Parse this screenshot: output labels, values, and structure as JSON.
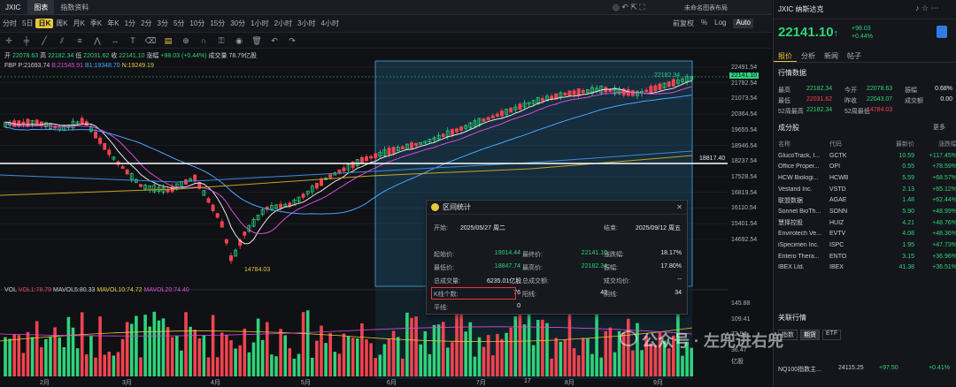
{
  "window": {
    "symbol": "JXIC",
    "tabs": [
      "图表",
      "指数资料"
    ],
    "active_tab": 0,
    "right_controls": "未命名图表布局"
  },
  "periods": [
    "分时",
    "5日",
    "日K",
    "周K",
    "月K",
    "季K",
    "年K",
    "1分",
    "2分",
    "3分",
    "5分",
    "10分",
    "15分",
    "30分",
    "1小时",
    "2小时",
    "3小时",
    "4小时"
  ],
  "active_period": 2,
  "toolbar_right": [
    "前复权",
    "%",
    "Log",
    "Auto"
  ],
  "ohlc": {
    "open_label": "开",
    "open": "22078.63",
    "high_label": "高",
    "high": "22182.34",
    "low_label": "低",
    "low": "22031.62",
    "close_label": "收",
    "close": "22141.10",
    "change_label": "涨幅",
    "change": "+98.03 (+0.44%)",
    "vol_label": "成交量",
    "vol": "78.79亿股"
  },
  "ma_legend": {
    "fbp": "FBP",
    "p": "P:21693.74",
    "b": "B:21545.91",
    "b1": "B1:19348.70",
    "n": "N:19249.19"
  },
  "vol_legend": {
    "vol": "VOL",
    "vol1": "VOL1:78.79",
    "mavol5": "MAVOL5:80.33",
    "mavol10": "MAVOL10:74.72",
    "mavol20": "MAVOL20:74.40"
  },
  "annotations": {
    "high_tag": "22182.34",
    "low_tag": "14784.03",
    "hline_tag": "18817.40",
    "last_price": "22141.10",
    "vol_unit": "亿股"
  },
  "y_ticks": [
    "22491.54",
    "21782.54",
    "21073.54",
    "20364.54",
    "19655.54",
    "18946.54",
    "18237.54",
    "17528.54",
    "16819.54",
    "16110.54",
    "15401.54",
    "14692.54"
  ],
  "vol_ticks": [
    "145.88",
    "109.41",
    "72.94",
    "36.47"
  ],
  "x_ticks": [
    "2月",
    "3月",
    "4月",
    "5月",
    "6月",
    "7月",
    "17",
    "8月",
    "9月"
  ],
  "dialog": {
    "title": "区间统计",
    "start_label": "开始:",
    "start": "2025/05/27 周二",
    "end_label": "结束:",
    "end": "2025/09/12 周五",
    "rows": [
      [
        "起始价:",
        "19014.44",
        "最终价:",
        "22141.10",
        "涨跌幅:",
        "18.17%"
      ],
      [
        "最低价:",
        "18847.74",
        "最高价:",
        "22182.34",
        "振幅:",
        "17.80%"
      ],
      [
        "总成交量:",
        "6235.01亿股",
        "总成交额:",
        "--",
        "成交均价:",
        "--"
      ],
      [
        "K线个数:",
        "76",
        "阳线:",
        "42",
        "阴线:",
        "34"
      ],
      [
        "平线:",
        "0",
        "",
        "",
        "",
        ""
      ]
    ]
  },
  "right_panel": {
    "title": "JXIC 纳斯达克",
    "price": "22141.10",
    "arrow": "↑",
    "change": "+98.03",
    "change_pct": "+0.44%",
    "tabs": [
      "报价",
      "分析",
      "新闻",
      "帖子"
    ],
    "quote_title": "行情数据",
    "quote": [
      [
        "最高",
        "22182.34",
        "今开",
        "22078.63",
        "振幅",
        "0.68%"
      ],
      [
        "最低",
        "22031.62",
        "昨收",
        "22043.07",
        "成交额",
        "0.00"
      ],
      [
        "52周最高",
        "22182.34",
        "52周最低",
        "14784.03",
        "",
        ""
      ]
    ],
    "const_title": "成分股",
    "more": "更多",
    "headers": [
      "名称",
      "代码",
      "最新价",
      "涨跌幅"
    ],
    "constituents": [
      [
        "GlucoTrack, I...",
        "GCTK",
        "10.59",
        "+117.45%"
      ],
      [
        "Office Proper...",
        "OPI",
        "0.55",
        "+78.59%"
      ],
      [
        "HCW Biologi...",
        "HCWB",
        "5.59",
        "+68.57%"
      ],
      [
        "Vestand Inc.",
        "VSTD",
        "2.13",
        "+65.12%"
      ],
      [
        "联盟数据",
        "AGAE",
        "1.48",
        "+62.44%"
      ],
      [
        "Sonnet BioTh...",
        "SONN",
        "5.90",
        "+48.99%"
      ],
      [
        "慧择控股",
        "HUIZ",
        "4.21",
        "+48.76%"
      ],
      [
        "Envirotech Ve...",
        "EVTV",
        "4.08",
        "+48.36%"
      ],
      [
        "iSpecimen Inc.",
        "ISPC",
        "1.95",
        "+47.73%"
      ],
      [
        "Entero Thera...",
        "ENTO",
        "3.15",
        "+36.96%"
      ],
      [
        "IBEX Ltd.",
        "IBEX",
        "41.38",
        "+36.51%"
      ]
    ],
    "related_title": "关联行情",
    "related_tabs": [
      "指数",
      "期货",
      "ETF"
    ],
    "related_rows": [
      [
        "NQ100指数主...",
        "24115.25",
        "+97.50",
        "+0.41%"
      ]
    ]
  },
  "watermark": "公众号 · 左兜进右兜"
}
